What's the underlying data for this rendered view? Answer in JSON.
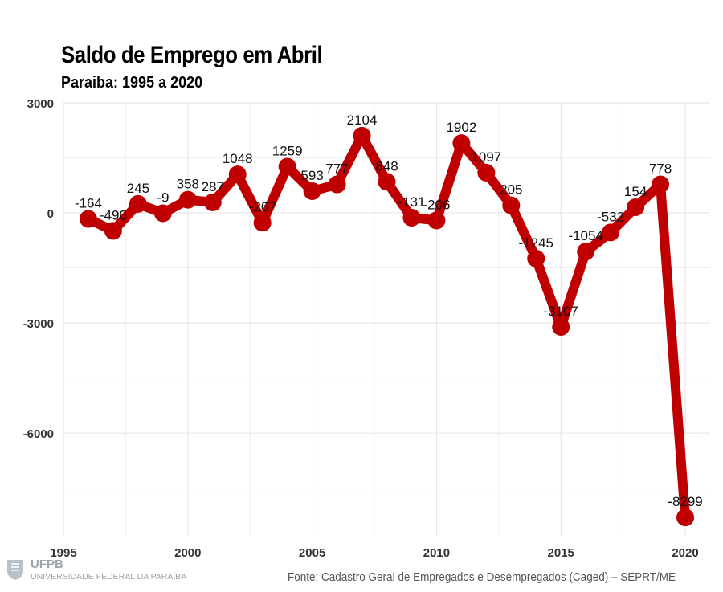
{
  "chart_data": {
    "type": "line",
    "title": "Saldo de Emprego em Abril",
    "subtitle": "Paraiba: 1995 a 2020",
    "xlabel": "",
    "ylabel": "",
    "x": [
      1996,
      1997,
      1998,
      1999,
      2000,
      2001,
      2002,
      2003,
      2004,
      2005,
      2006,
      2007,
      2008,
      2009,
      2010,
      2011,
      2012,
      2013,
      2014,
      2015,
      2016,
      2017,
      2018,
      2019,
      2020
    ],
    "series": [
      {
        "values": [
          -164,
          -490,
          245,
          -9,
          358,
          287,
          1048,
          -267,
          1259,
          593,
          777,
          2104,
          848,
          -131,
          -206,
          1902,
          1097,
          205,
          -1245,
          -3107,
          -1054,
          -532,
          154,
          778,
          -8299
        ]
      }
    ],
    "xlim": [
      1995,
      2021
    ],
    "ylim": [
      -8800,
      3000
    ],
    "x_ticks": [
      "1995",
      "2000",
      "2005",
      "2010",
      "2015",
      "2020"
    ],
    "y_ticks": [
      "3000",
      "0",
      "-3000",
      "-6000"
    ],
    "grid": true,
    "line_color": "#c00000",
    "data_labels": true
  },
  "footer": {
    "logo_name": "UFPB",
    "logo_subtitle": "UNIVERSIDADE FEDERAL DA PARAÍBA",
    "source": "Fonte: Cadastro Geral de Empregados e Desempregados (Caged) – SEPRT/ME"
  }
}
